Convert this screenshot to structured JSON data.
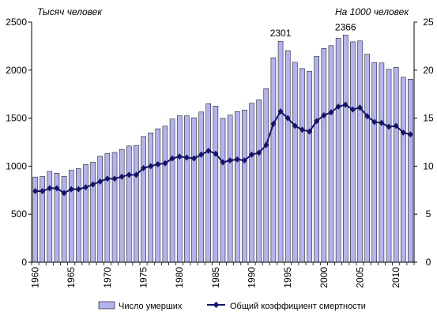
{
  "chart_data": {
    "type": "bar+line",
    "left_unit_label": "Тысяч человек",
    "right_unit_label": "На 1000 человек",
    "x_tick_labels": [
      "1960",
      "1965",
      "1970",
      "1975",
      "1980",
      "1985",
      "1990",
      "1995",
      "2000",
      "2005",
      "2010"
    ],
    "left_axis": {
      "min": 0,
      "max": 2500,
      "step": 500,
      "ticks": [
        "0",
        "500",
        "1000",
        "1500",
        "2000",
        "2500"
      ]
    },
    "right_axis": {
      "min": 0,
      "max": 25,
      "step": 5,
      "ticks": [
        "0",
        "5",
        "10",
        "15",
        "20",
        "25"
      ]
    },
    "years": [
      1960,
      1961,
      1962,
      1963,
      1964,
      1965,
      1966,
      1967,
      1968,
      1969,
      1970,
      1971,
      1972,
      1973,
      1974,
      1975,
      1976,
      1977,
      1978,
      1979,
      1980,
      1981,
      1982,
      1983,
      1984,
      1985,
      1986,
      1987,
      1988,
      1989,
      1990,
      1991,
      1992,
      1993,
      1994,
      1995,
      1996,
      1997,
      1998,
      1999,
      2000,
      2001,
      2002,
      2003,
      2004,
      2005,
      2006,
      2007,
      2008,
      2009,
      2010,
      2011,
      2012
    ],
    "series": [
      {
        "name": "Число умерших",
        "kind": "bar",
        "axis": "left",
        "color": "#b3b3f0",
        "values": [
          887,
          893,
          946,
          927,
          893,
          958,
          975,
          1017,
          1041,
          1103,
          1131,
          1143,
          1175,
          1210,
          1216,
          1309,
          1347,
          1389,
          1418,
          1491,
          1525,
          1524,
          1504,
          1564,
          1651,
          1626,
          1498,
          1532,
          1569,
          1584,
          1656,
          1691,
          1807,
          2129,
          2301,
          2204,
          2082,
          2016,
          1989,
          2145,
          2226,
          2255,
          2332,
          2366,
          2295,
          2304,
          2166,
          2080,
          2075,
          2010,
          2029,
          1926,
          1906
        ]
      },
      {
        "name": "Общий коэффициент смертности",
        "kind": "line",
        "axis": "right",
        "color": "#14146e",
        "values": [
          7.4,
          7.4,
          7.7,
          7.7,
          7.2,
          7.6,
          7.6,
          7.8,
          8.1,
          8.4,
          8.7,
          8.7,
          8.9,
          9.1,
          9.1,
          9.8,
          10.0,
          10.2,
          10.3,
          10.8,
          11.0,
          10.9,
          10.8,
          11.2,
          11.6,
          11.3,
          10.4,
          10.6,
          10.7,
          10.6,
          11.2,
          11.4,
          12.2,
          14.4,
          15.7,
          15.0,
          14.2,
          13.8,
          13.6,
          14.7,
          15.3,
          15.6,
          16.2,
          16.4,
          15.9,
          16.1,
          15.2,
          14.6,
          14.5,
          14.1,
          14.2,
          13.5,
          13.3
        ]
      }
    ],
    "annotations": [
      {
        "year": 1994,
        "text": "2301"
      },
      {
        "year": 2003,
        "text": "2366"
      }
    ],
    "grid": false,
    "legend_position": "bottom"
  }
}
